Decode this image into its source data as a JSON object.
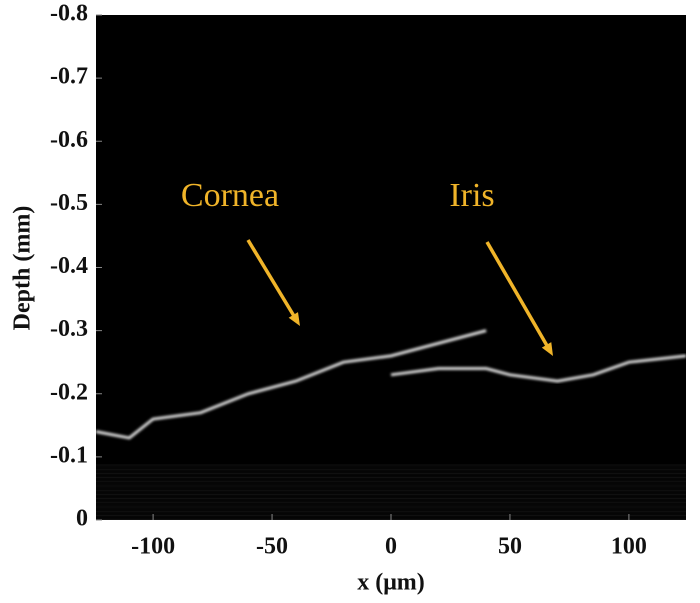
{
  "chart_data": {
    "type": "line",
    "xlabel": "x (μm)",
    "ylabel": "Depth (mm)",
    "xlim": [
      -124,
      124
    ],
    "xticks": [
      -100,
      -50,
      0,
      50,
      100
    ],
    "ylim": [
      0,
      -0.8
    ],
    "yticks": [
      -0.8,
      -0.7,
      -0.6,
      -0.5,
      -0.4,
      -0.3,
      -0.2,
      -0.1,
      0
    ],
    "annotations": [
      "Cornea",
      "Iris"
    ],
    "annotation_color": "#f0b429",
    "background": "#000000",
    "series": [
      {
        "color": "#ffffff",
        "x": [
          -124,
          -110,
          -100,
          -80,
          -60,
          -40,
          -20,
          0,
          20,
          40
        ],
        "values": [
          -0.14,
          -0.13,
          -0.16,
          -0.17,
          -0.2,
          -0.22,
          -0.25,
          -0.26,
          -0.28,
          -0.3
        ]
      },
      {
        "color": "#ffffff",
        "x": [
          0,
          20,
          40,
          50,
          70,
          85,
          100,
          124
        ],
        "values": [
          -0.23,
          -0.24,
          -0.24,
          -0.23,
          -0.22,
          -0.23,
          -0.25,
          -0.26
        ]
      }
    ]
  }
}
